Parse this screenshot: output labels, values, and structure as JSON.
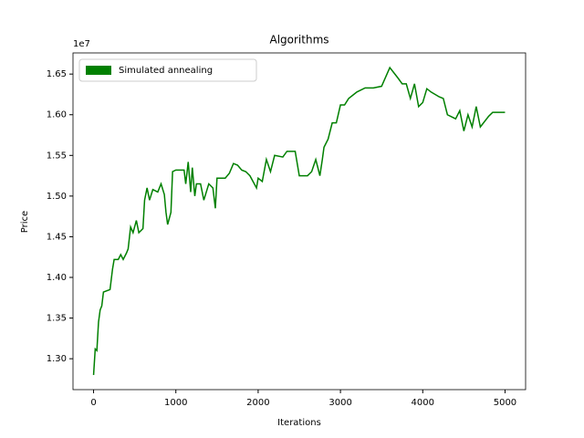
{
  "chart_data": {
    "type": "line",
    "title": "Algorithms",
    "xlabel": "Iterations",
    "ylabel": "Price",
    "y_offset_label": "1e7",
    "x": [
      0,
      20,
      40,
      60,
      80,
      100,
      120,
      200,
      230,
      250,
      300,
      330,
      360,
      400,
      420,
      450,
      480,
      520,
      550,
      600,
      620,
      650,
      680,
      720,
      780,
      820,
      860,
      880,
      900,
      940,
      960,
      1000,
      1100,
      1120,
      1150,
      1180,
      1200,
      1230,
      1250,
      1300,
      1340,
      1400,
      1450,
      1480,
      1500,
      1600,
      1650,
      1700,
      1750,
      1800,
      1850,
      1900,
      1980,
      2000,
      2050,
      2100,
      2150,
      2200,
      2300,
      2350,
      2450,
      2500,
      2600,
      2650,
      2700,
      2750,
      2780,
      2800,
      2850,
      2900,
      2950,
      3000,
      3050,
      3100,
      3200,
      3300,
      3400,
      3500,
      3600,
      3700,
      3750,
      3800,
      3850,
      3900,
      3950,
      4000,
      4050,
      4100,
      4200,
      4250,
      4300,
      4400,
      4450,
      4500,
      4550,
      4600,
      4650,
      4700,
      4800,
      4850,
      5000
    ],
    "series": [
      {
        "name": "Simulated annealing",
        "color": "#008000",
        "values": [
          12800000,
          13120000,
          13100000,
          13450000,
          13600000,
          13650000,
          13820000,
          13850000,
          14100000,
          14220000,
          14220000,
          14280000,
          14220000,
          14300000,
          14350000,
          14620000,
          14550000,
          14700000,
          14550000,
          14600000,
          14950000,
          15100000,
          14950000,
          15080000,
          15050000,
          15150000,
          15020000,
          14800000,
          14650000,
          14800000,
          15300000,
          15320000,
          15320000,
          15150000,
          15420000,
          15050000,
          15350000,
          15000000,
          15150000,
          15150000,
          14950000,
          15150000,
          15100000,
          14850000,
          15220000,
          15220000,
          15280000,
          15400000,
          15380000,
          15320000,
          15300000,
          15250000,
          15100000,
          15220000,
          15180000,
          15450000,
          15300000,
          15500000,
          15480000,
          15550000,
          15550000,
          15250000,
          15250000,
          15300000,
          15450000,
          15250000,
          15450000,
          15600000,
          15700000,
          15900000,
          15900000,
          16120000,
          16120000,
          16200000,
          16280000,
          16330000,
          16330000,
          16350000,
          16580000,
          16450000,
          16380000,
          16380000,
          16200000,
          16380000,
          16100000,
          16150000,
          16320000,
          16280000,
          16220000,
          16200000,
          16000000,
          15950000,
          16050000,
          15800000,
          16000000,
          15850000,
          16100000,
          15850000,
          15980000,
          16030000,
          16030000
        ]
      }
    ],
    "xlim": [
      -250,
      5250
    ],
    "ylim": [
      12620000,
      16760000
    ],
    "xticks": [
      0,
      1000,
      2000,
      3000,
      4000,
      5000
    ],
    "yticks": [
      {
        "value": 13000000,
        "label": "1.30"
      },
      {
        "value": 13500000,
        "label": "1.35"
      },
      {
        "value": 14000000,
        "label": "1.40"
      },
      {
        "value": 14500000,
        "label": "1.45"
      },
      {
        "value": 15000000,
        "label": "1.50"
      },
      {
        "value": 15500000,
        "label": "1.55"
      },
      {
        "value": 16000000,
        "label": "1.60"
      },
      {
        "value": 16500000,
        "label": "1.65"
      }
    ],
    "legend": "upper left",
    "grid": false
  }
}
